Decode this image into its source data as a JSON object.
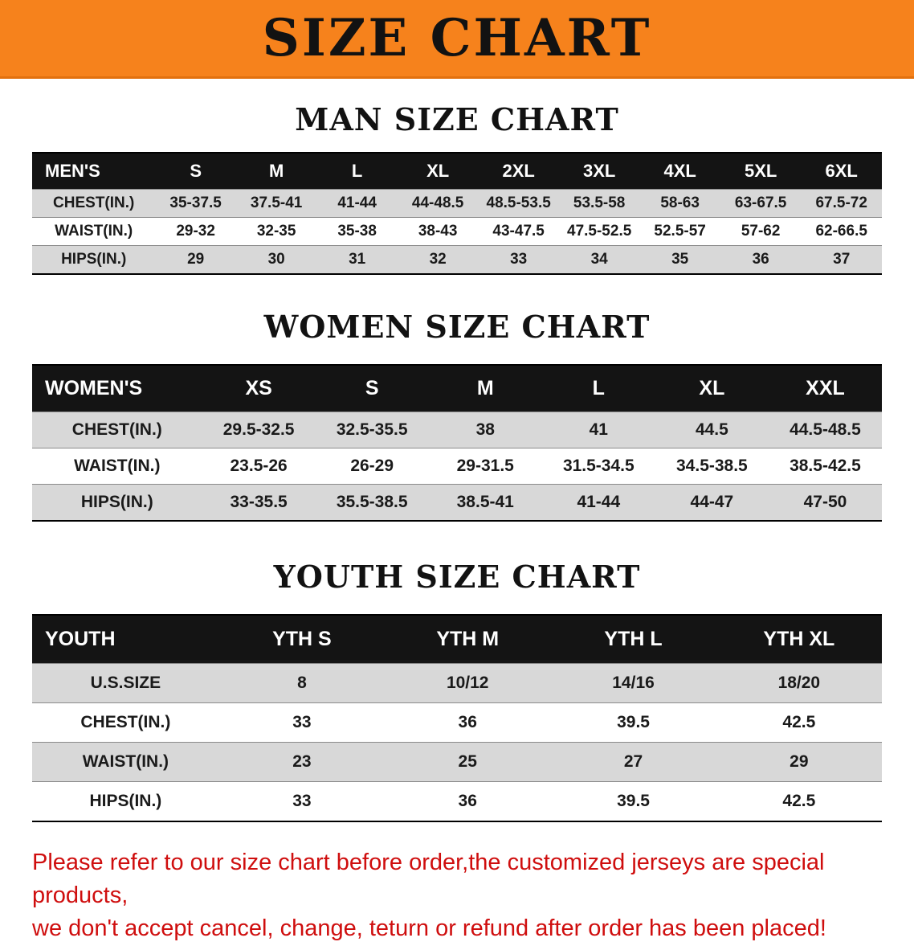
{
  "banner": {
    "title": "SIZE CHART",
    "bg_color": "#f6821c"
  },
  "sections": [
    {
      "heading": "MAN SIZE CHART",
      "table": {
        "header": [
          "MEN'S",
          "S",
          "M",
          "L",
          "XL",
          "2XL",
          "3XL",
          "4XL",
          "5XL",
          "6XL"
        ],
        "rows": [
          {
            "label": "CHEST(IN.)",
            "values": [
              "35-37.5",
              "37.5-41",
              "41-44",
              "44-48.5",
              "48.5-53.5",
              "53.5-58",
              "58-63",
              "63-67.5",
              "67.5-72"
            ]
          },
          {
            "label": "WAIST(IN.)",
            "values": [
              "29-32",
              "32-35",
              "35-38",
              "38-43",
              "43-47.5",
              "47.5-52.5",
              "52.5-57",
              "57-62",
              "62-66.5"
            ]
          },
          {
            "label": "HIPS(IN.)",
            "values": [
              "29",
              "30",
              "31",
              "32",
              "33",
              "34",
              "35",
              "36",
              "37"
            ]
          }
        ]
      }
    },
    {
      "heading": "WOMEN SIZE CHART",
      "table": {
        "header": [
          "WOMEN'S",
          "XS",
          "S",
          "M",
          "L",
          "XL",
          "XXL"
        ],
        "rows": [
          {
            "label": "CHEST(IN.)",
            "values": [
              "29.5-32.5",
              "32.5-35.5",
              "38",
              "41",
              "44.5",
              "44.5-48.5"
            ]
          },
          {
            "label": "WAIST(IN.)",
            "values": [
              "23.5-26",
              "26-29",
              "29-31.5",
              "31.5-34.5",
              "34.5-38.5",
              "38.5-42.5"
            ]
          },
          {
            "label": "HIPS(IN.)",
            "values": [
              "33-35.5",
              "35.5-38.5",
              "38.5-41",
              "41-44",
              "44-47",
              "47-50"
            ]
          }
        ]
      }
    },
    {
      "heading": "YOUTH SIZE CHART",
      "table": {
        "header": [
          "YOUTH",
          "YTH S",
          "YTH M",
          "YTH L",
          "YTH XL"
        ],
        "rows": [
          {
            "label": "U.S.SIZE",
            "values": [
              "8",
              "10/12",
              "14/16",
              "18/20"
            ]
          },
          {
            "label": "CHEST(IN.)",
            "values": [
              "33",
              "36",
              "39.5",
              "42.5"
            ]
          },
          {
            "label": "WAIST(IN.)",
            "values": [
              "23",
              "25",
              "27",
              "29"
            ]
          },
          {
            "label": "HIPS(IN.)",
            "values": [
              "33",
              "36",
              "39.5",
              "42.5"
            ]
          }
        ]
      }
    }
  ],
  "footer": {
    "line1": "Please refer to our size chart before order,the customized jerseys are special products,",
    "line2": "we don't accept cancel, change, teturn or refund after order has been placed!",
    "text_color": "#cf0e0e"
  },
  "colors": {
    "banner_orange": "#f6821c",
    "table_header_black": "#141414",
    "row_stripe_gray": "#d8d8d8",
    "footer_red": "#cf0e0e"
  }
}
